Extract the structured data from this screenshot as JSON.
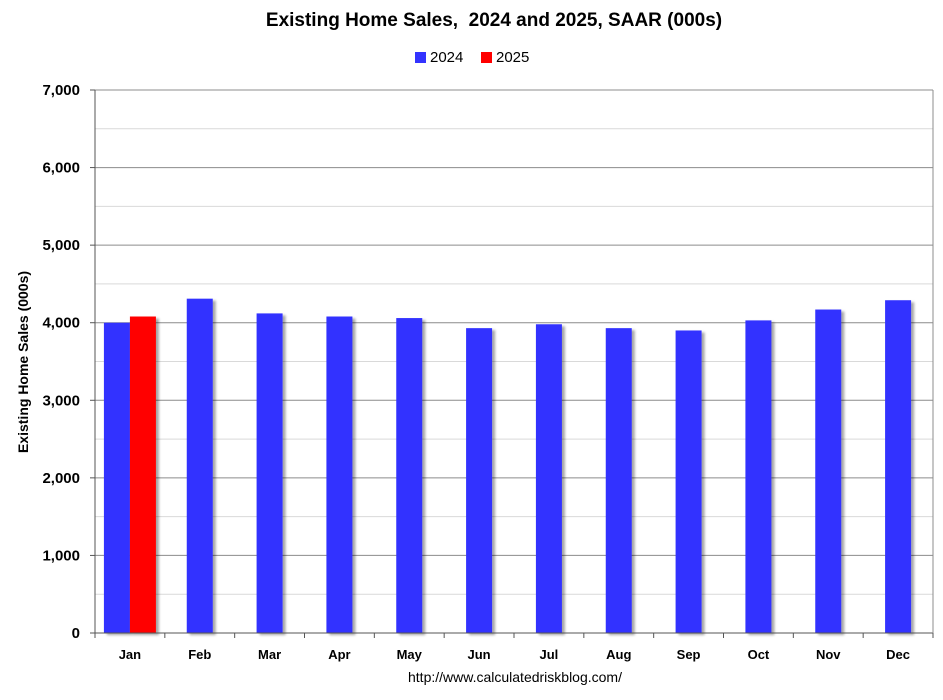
{
  "chart_data": {
    "type": "bar",
    "title": "Existing Home Sales,  2024 and 2025, SAAR (000s)",
    "ylabel": "Existing Home Sales (000s)",
    "xlabel": "",
    "source": "http://www.calculatedriskblog.com/",
    "ylim": [
      0,
      7000
    ],
    "yticks": [
      0,
      1000,
      2000,
      3000,
      4000,
      5000,
      6000,
      7000
    ],
    "ytick_labels": [
      "0",
      "1,000",
      "2,000",
      "3,000",
      "4,000",
      "5,000",
      "6,000",
      "7,000"
    ],
    "grid": true,
    "legend_position": "top-center",
    "categories": [
      "Jan",
      "Feb",
      "Mar",
      "Apr",
      "May",
      "Jun",
      "Jul",
      "Aug",
      "Sep",
      "Oct",
      "Nov",
      "Dec"
    ],
    "series": [
      {
        "name": "2024",
        "color": "#3333ff",
        "values": [
          4000,
          4310,
          4120,
          4080,
          4060,
          3930,
          3980,
          3930,
          3900,
          4030,
          4170,
          4290
        ]
      },
      {
        "name": "2025",
        "color": "#ff0000",
        "values": [
          4080,
          null,
          null,
          null,
          null,
          null,
          null,
          null,
          null,
          null,
          null,
          null
        ]
      }
    ]
  }
}
